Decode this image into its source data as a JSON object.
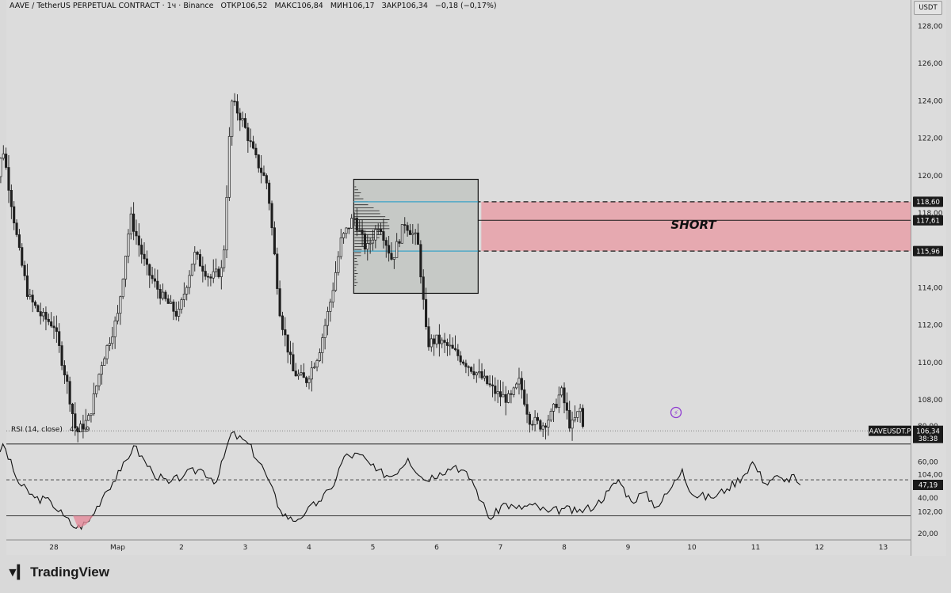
{
  "header": {
    "symbol": "AAVE / TetherUS PERPETUAL CONTRACT · 1ч · Binance",
    "open": "ОТКР106,52",
    "high": "МАКС106,84",
    "low": "МИН106,17",
    "close": "ЗАКР106,34",
    "change": "−0,18 (−0,17%)"
  },
  "currency": "USDT",
  "rsi_header": {
    "name": "RSI (14, close)",
    "value": "47,19"
  },
  "annotation": {
    "short_label": "SHORT"
  },
  "price_tags": {
    "upper": "118,60",
    "mid": "117,61",
    "lower": "115,96",
    "symbol_tag": "AAVEUSDT.P",
    "last_price": "106,34",
    "countdown": "38:38",
    "rsi_value": "47,19"
  },
  "branding": {
    "name": "TradingView"
  },
  "colors": {
    "up": "#1f1f1f",
    "short_zone": "#e8a0a8",
    "short_zone_border": "#1a1a1a",
    "profile_line": "#3aa3c7",
    "box_fill": "#c6c9c6",
    "rsi_line": "#111111"
  },
  "chart_data": [
    {
      "type": "candlestick",
      "title": "AAVE / TetherUS PERPETUAL CONTRACT · 1ч · Binance",
      "ylim": [
        101.3,
        129.3
      ],
      "y_ticks": [
        "128,00",
        "126,00",
        "124,00",
        "122,00",
        "120,00",
        "118,00",
        "116,00",
        "114,00",
        "112,00",
        "110,00",
        "108,00",
        "106,00",
        "104,00",
        "102,00"
      ],
      "x_ticks": [
        "28",
        "Мар",
        "2",
        "3",
        "4",
        "5",
        "6",
        "7",
        "8",
        "9",
        "10",
        "11",
        "12",
        "13"
      ],
      "grid": false,
      "last_price": 106.34,
      "close_path": [
        {
          "day": 27.0,
          "close": 117.5
        },
        {
          "day": 27.2,
          "close": 121.5
        },
        {
          "day": 27.45,
          "close": 116.0
        },
        {
          "day": 27.6,
          "close": 113.5
        },
        {
          "day": 27.8,
          "close": 112.5
        },
        {
          "day": 28.0,
          "close": 112.0
        },
        {
          "day": 28.2,
          "close": 109.0
        },
        {
          "day": 28.35,
          "close": 106.2
        },
        {
          "day": 28.55,
          "close": 107.0
        },
        {
          "day": 28.75,
          "close": 110.0
        },
        {
          "day": 29.0,
          "close": 112.5
        },
        {
          "day": 29.2,
          "close": 117.8
        },
        {
          "day": 29.45,
          "close": 115.0
        },
        {
          "day": 29.7,
          "close": 113.5
        },
        {
          "day": 29.95,
          "close": 112.5
        },
        {
          "day": 30.2,
          "close": 115.8
        },
        {
          "day": 30.45,
          "close": 114.5
        },
        {
          "day": 30.65,
          "close": 115.0
        },
        {
          "day": 30.78,
          "close": 124.0
        },
        {
          "day": 30.95,
          "close": 123.0
        },
        {
          "day": 31.15,
          "close": 121.0
        },
        {
          "day": 31.35,
          "close": 119.5
        },
        {
          "day": 31.55,
          "close": 112.5
        },
        {
          "day": 31.75,
          "close": 109.5
        },
        {
          "day": 31.95,
          "close": 109.0
        },
        {
          "day": 32.15,
          "close": 110.5
        },
        {
          "day": 32.35,
          "close": 113.5
        },
        {
          "day": 32.5,
          "close": 116.5
        },
        {
          "day": 32.7,
          "close": 117.8
        },
        {
          "day": 32.9,
          "close": 116.0
        },
        {
          "day": 33.1,
          "close": 117.5
        },
        {
          "day": 33.3,
          "close": 115.5
        },
        {
          "day": 33.5,
          "close": 117.5
        },
        {
          "day": 33.7,
          "close": 116.5
        },
        {
          "day": 33.75,
          "close": 114.8
        },
        {
          "day": 33.85,
          "close": 111.0
        },
        {
          "day": 34.0,
          "close": 111.2
        },
        {
          "day": 34.2,
          "close": 110.8
        },
        {
          "day": 34.45,
          "close": 110.0
        },
        {
          "day": 34.7,
          "close": 109.2
        },
        {
          "day": 34.95,
          "close": 108.3
        },
        {
          "day": 35.15,
          "close": 108.0
        },
        {
          "day": 35.3,
          "close": 109.0
        },
        {
          "day": 35.45,
          "close": 107.0
        },
        {
          "day": 35.65,
          "close": 106.6
        },
        {
          "day": 35.8,
          "close": 107.2
        },
        {
          "day": 35.95,
          "close": 108.5
        },
        {
          "day": 36.1,
          "close": 106.5
        },
        {
          "day": 36.25,
          "close": 107.5
        },
        {
          "day": 36.3,
          "close": 106.34
        }
      ],
      "short_zone": {
        "top": 118.6,
        "mid": 117.61,
        "bottom": 115.96,
        "label": "SHORT"
      },
      "consolidation_box": {
        "from_day": 32.7,
        "to_day": 34.65,
        "high": 119.8,
        "low": 113.7
      }
    },
    {
      "type": "line",
      "title": "RSI (14, close)",
      "ylim": [
        16,
        84
      ],
      "y_ticks": [
        "80,00",
        "60,00",
        "40,00",
        "20,00"
      ],
      "bands": [
        70,
        50,
        30
      ],
      "last_value": 47.19,
      "series": [
        {
          "name": "RSI (14, close)",
          "points": [
            {
              "day": 27.0,
              "value": 52
            },
            {
              "day": 27.2,
              "value": 70
            },
            {
              "day": 27.45,
              "value": 48
            },
            {
              "day": 27.7,
              "value": 40
            },
            {
              "day": 27.95,
              "value": 38
            },
            {
              "day": 28.15,
              "value": 30
            },
            {
              "day": 28.35,
              "value": 23
            },
            {
              "day": 28.55,
              "value": 27
            },
            {
              "day": 28.8,
              "value": 43
            },
            {
              "day": 29.05,
              "value": 55
            },
            {
              "day": 29.25,
              "value": 69
            },
            {
              "day": 29.55,
              "value": 54
            },
            {
              "day": 29.8,
              "value": 48
            },
            {
              "day": 30.05,
              "value": 53
            },
            {
              "day": 30.3,
              "value": 56
            },
            {
              "day": 30.55,
              "value": 49
            },
            {
              "day": 30.78,
              "value": 76
            },
            {
              "day": 31.05,
              "value": 70
            },
            {
              "day": 31.3,
              "value": 55
            },
            {
              "day": 31.55,
              "value": 33
            },
            {
              "day": 31.75,
              "value": 27
            },
            {
              "day": 31.95,
              "value": 32
            },
            {
              "day": 32.15,
              "value": 38
            },
            {
              "day": 32.35,
              "value": 45
            },
            {
              "day": 32.55,
              "value": 63
            },
            {
              "day": 32.8,
              "value": 64
            },
            {
              "day": 33.05,
              "value": 55
            },
            {
              "day": 33.3,
              "value": 52
            },
            {
              "day": 33.55,
              "value": 62
            },
            {
              "day": 33.8,
              "value": 50
            },
            {
              "day": 34.05,
              "value": 54
            },
            {
              "day": 34.3,
              "value": 58
            },
            {
              "day": 34.55,
              "value": 50
            },
            {
              "day": 34.7,
              "value": 38
            },
            {
              "day": 34.85,
              "value": 28
            },
            {
              "day": 35.05,
              "value": 37
            },
            {
              "day": 35.25,
              "value": 34
            },
            {
              "day": 35.5,
              "value": 36
            },
            {
              "day": 35.75,
              "value": 32
            },
            {
              "day": 36.0,
              "value": 34
            },
            {
              "day": 36.2,
              "value": 32
            },
            {
              "day": 36.5,
              "value": 36
            },
            {
              "day": 36.7,
              "value": 44
            },
            {
              "day": 36.85,
              "value": 50
            },
            {
              "day": 37.05,
              "value": 38
            },
            {
              "day": 37.25,
              "value": 43
            },
            {
              "day": 37.45,
              "value": 35
            },
            {
              "day": 37.65,
              "value": 44
            },
            {
              "day": 37.85,
              "value": 56
            },
            {
              "day": 38.0,
              "value": 42
            },
            {
              "day": 38.3,
              "value": 40
            },
            {
              "day": 38.55,
              "value": 45
            },
            {
              "day": 38.8,
              "value": 52
            },
            {
              "day": 38.95,
              "value": 60
            },
            {
              "day": 39.15,
              "value": 48
            },
            {
              "day": 39.3,
              "value": 52
            },
            {
              "day": 39.45,
              "value": 49
            },
            {
              "day": 39.6,
              "value": 53
            },
            {
              "day": 39.7,
              "value": 47.19
            }
          ]
        }
      ]
    }
  ]
}
